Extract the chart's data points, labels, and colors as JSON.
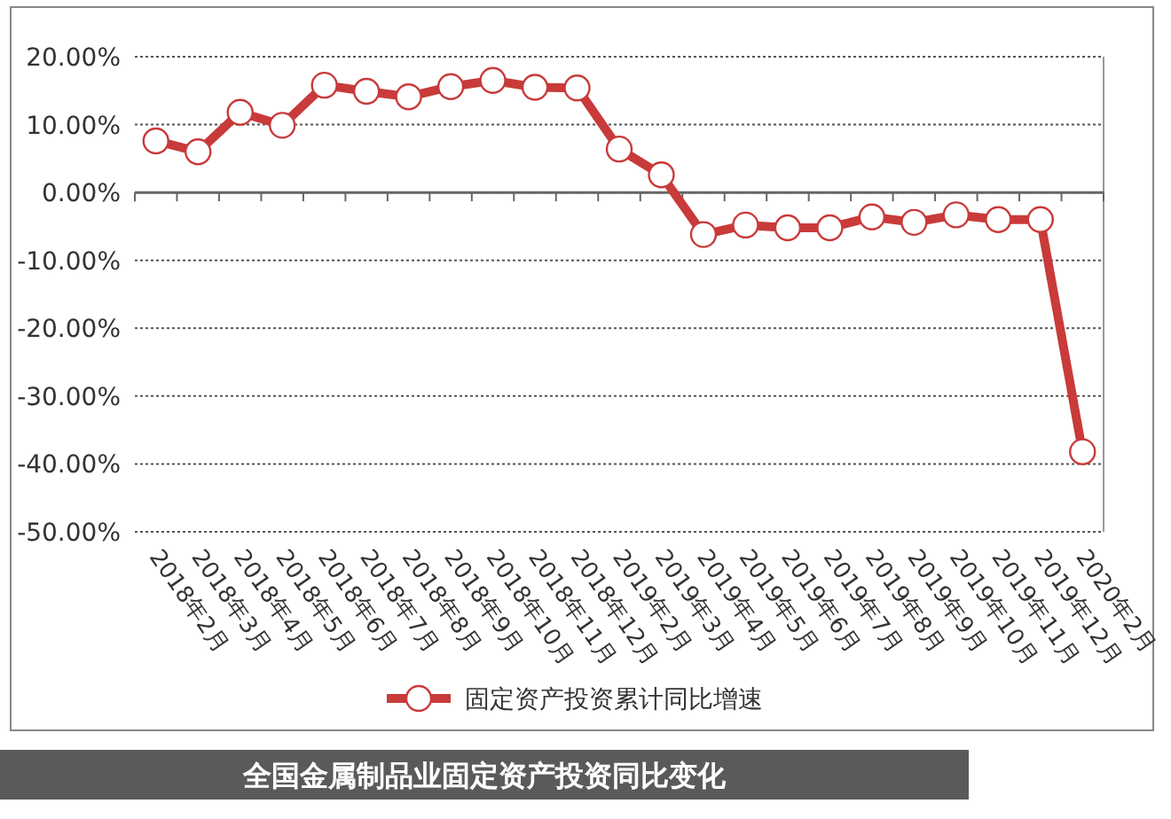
{
  "chart_data": {
    "type": "line",
    "title": "全国金属制品业固定资产投资同比变化",
    "categories": [
      "2018年2月",
      "2018年3月",
      "2018年4月",
      "2018年5月",
      "2018年6月",
      "2018年7月",
      "2018年8月",
      "2018年9月",
      "2018年10月",
      "2018年11月",
      "2018年12月",
      "2019年2月",
      "2019年3月",
      "2019年4月",
      "2019年5月",
      "2019年6月",
      "2019年7月",
      "2019年8月",
      "2019年9月",
      "2019年10月",
      "2019年11月",
      "2019年12月",
      "2020年2月"
    ],
    "series": [
      {
        "name": "固定资产投资累计同比增速",
        "color": "#c93a3a",
        "values": [
          7.6,
          6.0,
          11.8,
          9.9,
          15.8,
          14.9,
          14.1,
          15.6,
          16.5,
          15.5,
          15.4,
          6.4,
          2.6,
          -6.2,
          -4.8,
          -5.2,
          -5.2,
          -3.6,
          -4.4,
          -3.3,
          -4.0,
          -4.0,
          -38.2
        ]
      }
    ],
    "ylim": [
      -50,
      20
    ],
    "yticks": [
      {
        "value": 20,
        "label": "20.00%"
      },
      {
        "value": 10,
        "label": "10.00%"
      },
      {
        "value": 0,
        "label": "0.00%"
      },
      {
        "value": -10,
        "label": "-10.00%"
      },
      {
        "value": -20,
        "label": "-20.00%"
      },
      {
        "value": -30,
        "label": "-30.00%"
      },
      {
        "value": -40,
        "label": "-40.00%"
      },
      {
        "value": -50,
        "label": "-50.00%"
      }
    ],
    "grid": "y",
    "legend": "bottom",
    "marker": "circle",
    "line_style": "solid"
  }
}
